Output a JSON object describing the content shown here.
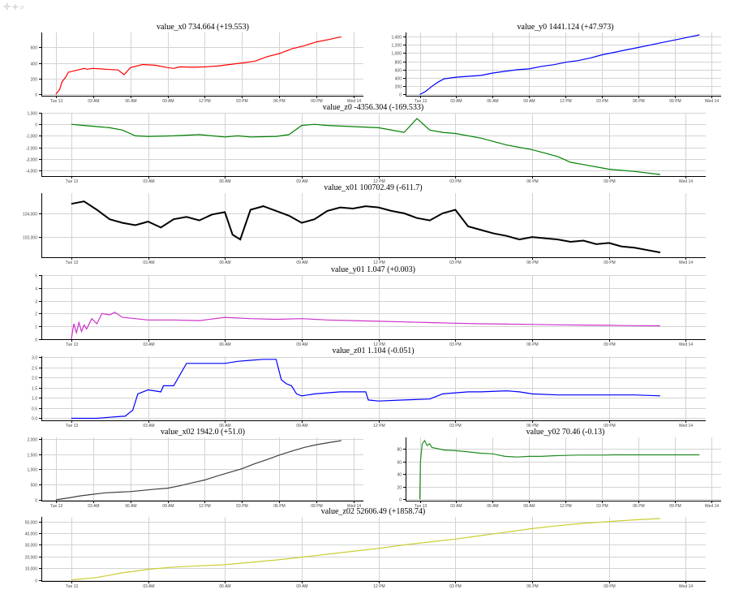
{
  "toolbar": {
    "icons": [
      "pan-icon",
      "zoom-in-icon",
      "zoom-icon"
    ],
    "glyphs": [
      "✛",
      "+",
      "⌕"
    ]
  },
  "chart_data": [
    {
      "type": "line",
      "title": "value_x0 734.664 (+19.553)",
      "color": "#ff0000",
      "x_tick_labels": [
        "Tue 13",
        "03 AM",
        "06 AM",
        "09 AM",
        "12 PM",
        "03 PM",
        "06 PM",
        "09 PM",
        "Wed 14"
      ],
      "y_ticks": [
        0,
        200,
        400,
        600
      ],
      "y_tick_labels": [
        "0",
        "200",
        "400",
        "600"
      ],
      "ylim": [
        -20,
        790
      ],
      "series": [
        {
          "x": [
            0,
            0.3,
            0.5,
            0.8,
            1,
            1.5,
            2,
            2.3,
            2.5,
            3,
            4,
            5,
            5.5,
            6,
            7,
            8,
            9,
            9.5,
            10,
            11,
            12,
            13,
            14,
            15,
            16,
            17,
            18,
            19,
            20,
            21,
            22,
            23
          ],
          "y": [
            0,
            60,
            160,
            220,
            280,
            300,
            320,
            330,
            320,
            330,
            320,
            310,
            250,
            340,
            380,
            370,
            340,
            330,
            350,
            345,
            350,
            360,
            380,
            400,
            420,
            480,
            520,
            580,
            620,
            670,
            700,
            734.664
          ]
        }
      ]
    },
    {
      "type": "line",
      "title": "value_y0 1441.124 (+47.973)",
      "color": "#0000ff",
      "x_tick_labels": [
        "Tue 13",
        "03 AM",
        "06 AM",
        "09 AM",
        "12 PM",
        "03 PM",
        "06 PM",
        "09 PM",
        "Wed 14"
      ],
      "y_ticks": [
        0,
        200,
        400,
        600,
        800,
        1000,
        1200,
        1400
      ],
      "y_tick_labels": [
        "0",
        "200",
        "400",
        "600",
        "800",
        "1,000",
        "1,200",
        "1,400"
      ],
      "ylim": [
        -30,
        1500
      ],
      "series": [
        {
          "x": [
            0,
            0.5,
            1,
            1.5,
            2,
            3,
            4,
            5,
            6,
            7,
            8,
            9,
            10,
            11,
            12,
            13,
            14,
            15,
            16,
            17,
            18,
            19,
            20,
            21,
            22,
            23
          ],
          "y": [
            0,
            80,
            200,
            300,
            380,
            420,
            440,
            460,
            520,
            560,
            600,
            620,
            680,
            720,
            780,
            820,
            880,
            960,
            1020,
            1080,
            1140,
            1200,
            1260,
            1320,
            1380,
            1441.124
          ]
        }
      ]
    },
    {
      "type": "line",
      "title": "value_z0 -4356.304 (-169.533)",
      "color": "#008000",
      "x_tick_labels": [
        "Tue 13",
        "03 AM",
        "06 AM",
        "09 AM",
        "12 PM",
        "03 PM",
        "06 PM",
        "09 PM",
        "Wed 14"
      ],
      "y_ticks": [
        -4000,
        -3000,
        -2000,
        -1000,
        0,
        1000
      ],
      "y_tick_labels": [
        "-4,000",
        "-3,000",
        "-2,000",
        "-1,000",
        "0",
        "1,000"
      ],
      "ylim": [
        -4500,
        1000
      ],
      "series": [
        {
          "x": [
            0,
            0.5,
            1,
            1.5,
            2,
            2.5,
            3,
            4,
            5,
            5.5,
            6,
            6.5,
            7,
            8,
            8.5,
            9,
            9.5,
            10,
            11,
            12,
            13,
            13.5,
            14,
            14.5,
            15,
            16,
            17,
            18,
            19,
            19.5,
            20,
            21,
            22,
            23
          ],
          "y": [
            0,
            -100,
            -200,
            -300,
            -500,
            -1000,
            -1050,
            -1000,
            -900,
            -1000,
            -1100,
            -1000,
            -1100,
            -1050,
            -900,
            -100,
            0,
            -100,
            -200,
            -300,
            -700,
            500,
            -500,
            -700,
            -800,
            -1200,
            -1800,
            -2200,
            -2800,
            -3300,
            -3500,
            -3900,
            -4100,
            -4356.304
          ]
        }
      ]
    },
    {
      "type": "line",
      "title": "value_x01 100702.49 (-611.7)",
      "color": "#000000",
      "x_tick_labels": [
        "Tue 13",
        "03 AM",
        "06 AM",
        "09 AM",
        "12 PM",
        "03 PM",
        "06 PM",
        "09 PM",
        "Wed 14"
      ],
      "y_ticks": [
        102000,
        104000
      ],
      "y_tick_labels": [
        "102,000",
        "104,000"
      ],
      "ylim": [
        100300,
        105700
      ],
      "series": [
        {
          "x": [
            0,
            0.5,
            1,
            1.5,
            2,
            2.5,
            3,
            3.5,
            4,
            4.5,
            5,
            5.5,
            6,
            6.3,
            6.6,
            7,
            7.5,
            8,
            8.5,
            9,
            9.5,
            10,
            10.5,
            11,
            11.5,
            12,
            12.5,
            13,
            13.5,
            14,
            14.5,
            15,
            15.5,
            16,
            16.5,
            17,
            17.5,
            18,
            18.5,
            19,
            19.5,
            20,
            20.5,
            21,
            21.5,
            22,
            22.5,
            23
          ],
          "y": [
            104800,
            105000,
            104300,
            103500,
            103200,
            103000,
            103300,
            102800,
            103500,
            103700,
            103400,
            103900,
            104100,
            102200,
            101800,
            104300,
            104600,
            104200,
            103800,
            103200,
            103500,
            104200,
            104500,
            104400,
            104600,
            104500,
            104200,
            104000,
            103600,
            103400,
            104000,
            104300,
            102900,
            102600,
            102300,
            102100,
            101800,
            102000,
            101900,
            101800,
            101600,
            101700,
            101400,
            101500,
            101200,
            101100,
            100900,
            100702.49
          ]
        }
      ]
    },
    {
      "type": "line",
      "title": "value_y01 1.047 (+0.003)",
      "color": "#cc33cc",
      "x_tick_labels": [
        "Tue 13",
        "03 AM",
        "06 AM",
        "09 AM",
        "12 PM",
        "03 PM",
        "06 PM",
        "09 PM",
        "Wed 14"
      ],
      "y_ticks": [
        0,
        1,
        2,
        3,
        4,
        5
      ],
      "y_tick_labels": [
        "0",
        "1",
        "2",
        "3",
        "4",
        "5"
      ],
      "ylim": [
        0,
        5
      ],
      "series": [
        {
          "x": [
            0,
            0.1,
            0.2,
            0.3,
            0.4,
            0.5,
            0.6,
            0.8,
            1,
            1.2,
            1.5,
            1.7,
            2,
            2.5,
            3,
            4,
            5,
            6,
            7,
            8,
            9,
            10,
            11,
            12,
            13,
            14,
            15,
            16,
            17,
            18,
            19,
            20,
            21,
            22,
            23
          ],
          "y": [
            0,
            1.2,
            0.5,
            1.3,
            0.6,
            1.1,
            0.8,
            1.6,
            1.2,
            2.0,
            1.9,
            2.1,
            1.7,
            1.6,
            1.5,
            1.5,
            1.45,
            1.7,
            1.6,
            1.55,
            1.6,
            1.5,
            1.45,
            1.4,
            1.35,
            1.3,
            1.25,
            1.2,
            1.18,
            1.15,
            1.12,
            1.1,
            1.08,
            1.06,
            1.047
          ]
        }
      ]
    },
    {
      "type": "line",
      "title": "value_z01 1.104 (-0.051)",
      "color": "#0000ff",
      "x_tick_labels": [
        "Tue 13",
        "03 AM",
        "06 AM",
        "09 AM",
        "12 PM",
        "03 PM",
        "06 PM",
        "09 PM",
        "Wed 14"
      ],
      "y_ticks": [
        0,
        0.5,
        1,
        1.5,
        2,
        2.5,
        3
      ],
      "y_tick_labels": [
        "0.0",
        "0.5",
        "1.0",
        "1.5",
        "2.0",
        "2.5",
        "3.0"
      ],
      "ylim": [
        -0.1,
        3.05
      ],
      "series": [
        {
          "x": [
            0,
            0.5,
            1,
            1.5,
            2,
            2.1,
            2.4,
            2.6,
            3,
            3.5,
            3.6,
            4,
            4.5,
            5,
            5.5,
            6,
            6.5,
            7,
            7.5,
            8,
            8.2,
            8.4,
            8.6,
            8.8,
            9,
            9.5,
            10,
            10.5,
            11,
            11.5,
            11.6,
            12,
            13,
            14,
            14.5,
            15,
            15.5,
            16,
            17,
            17.5,
            18,
            19,
            20,
            21,
            22,
            23
          ],
          "y": [
            0,
            0,
            0,
            0.05,
            0.1,
            0.1,
            0.4,
            1.2,
            1.4,
            1.3,
            1.6,
            1.6,
            2.7,
            2.7,
            2.7,
            2.7,
            2.8,
            2.85,
            2.9,
            2.9,
            1.9,
            1.7,
            1.6,
            1.2,
            1.1,
            1.2,
            1.25,
            1.3,
            1.3,
            1.3,
            0.9,
            0.85,
            0.9,
            0.95,
            1.2,
            1.25,
            1.3,
            1.3,
            1.35,
            1.3,
            1.2,
            1.15,
            1.15,
            1.15,
            1.15,
            1.104
          ]
        }
      ]
    },
    {
      "type": "line",
      "title": "value_x02 1942.0 (+51.0)",
      "color": "#404040",
      "x_tick_labels": [
        "Tue 13",
        "03 AM",
        "06 AM",
        "09 AM",
        "12 PM",
        "03 PM",
        "06 PM",
        "09 PM",
        "Wed 14"
      ],
      "y_ticks": [
        0,
        500,
        1000,
        1500,
        2000
      ],
      "y_tick_labels": [
        "0",
        "500",
        "1,000",
        "1,500",
        "2,000"
      ],
      "ylim": [
        -30,
        2050
      ],
      "series": [
        {
          "x": [
            0,
            1,
            2,
            3,
            4,
            5,
            6,
            7,
            8,
            9,
            10,
            11,
            12,
            13,
            14,
            15,
            16,
            17,
            18,
            19,
            20,
            21,
            22,
            23
          ],
          "y": [
            0,
            60,
            130,
            180,
            230,
            250,
            270,
            310,
            350,
            380,
            460,
            560,
            650,
            780,
            900,
            1020,
            1180,
            1320,
            1470,
            1600,
            1720,
            1810,
            1880,
            1942
          ]
        }
      ]
    },
    {
      "type": "line",
      "title": "value_y02 70.46 (-0.13)",
      "color": "#228b22",
      "x_tick_labels": [
        "Tue 13",
        "03 AM",
        "06 AM",
        "09 AM",
        "12 PM",
        "03 PM",
        "06 PM",
        "09 PM",
        "Wed 14"
      ],
      "y_ticks": [
        0,
        20,
        40,
        60,
        80
      ],
      "y_tick_labels": [
        "0",
        "20",
        "40",
        "60",
        "80"
      ],
      "ylim": [
        -2,
        98
      ],
      "series": [
        {
          "x": [
            0,
            0.05,
            0.2,
            0.4,
            0.6,
            0.8,
            1,
            1.5,
            2,
            3,
            4,
            5,
            6,
            7,
            8,
            9,
            10,
            11,
            12,
            13,
            14,
            15,
            16,
            17,
            18,
            19,
            20,
            21,
            22,
            23
          ],
          "y": [
            0,
            60,
            88,
            93,
            85,
            88,
            82,
            80,
            78,
            77,
            75,
            73,
            72,
            68,
            67,
            68,
            68,
            69,
            69.5,
            70,
            70,
            70,
            70.5,
            70.5,
            70.5,
            70.5,
            70.5,
            70.5,
            70.5,
            70.46
          ]
        }
      ]
    },
    {
      "type": "line",
      "title": "value_z02 52606.49 (+1858.74)",
      "color": "#cccc33",
      "x_tick_labels": [
        "Tue 13",
        "03 AM",
        "06 AM",
        "09 AM",
        "12 PM",
        "03 PM",
        "06 PM",
        "09 PM",
        "Wed 14"
      ],
      "y_ticks": [
        0,
        10000,
        20000,
        30000,
        40000,
        50000
      ],
      "y_tick_labels": [
        "0",
        "10,000",
        "20,000",
        "30,000",
        "40,000",
        "50,000"
      ],
      "ylim": [
        -1000,
        54000
      ],
      "series": [
        {
          "x": [
            0,
            1,
            2,
            3,
            4,
            5,
            6,
            7,
            8,
            9,
            10,
            11,
            12,
            13,
            14,
            15,
            16,
            17,
            18,
            19,
            20,
            21,
            22,
            23
          ],
          "y": [
            0,
            2000,
            6000,
            9000,
            11000,
            12000,
            13000,
            15000,
            17000,
            19500,
            22000,
            24500,
            27000,
            30000,
            32500,
            35000,
            38000,
            41000,
            44000,
            46500,
            48500,
            50000,
            51500,
            52606.49
          ]
        }
      ]
    }
  ]
}
